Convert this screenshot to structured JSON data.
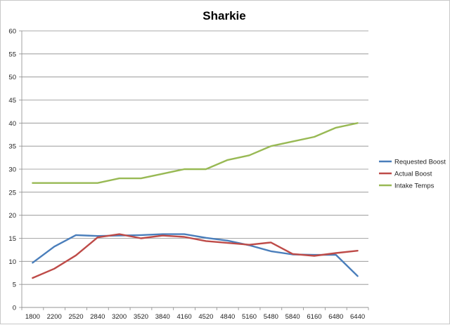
{
  "chart_data": {
    "type": "line",
    "title": "Sharkie",
    "xlabel": "",
    "ylabel": "",
    "categories": [
      "1800",
      "2200",
      "2520",
      "2840",
      "3200",
      "3520",
      "3840",
      "4160",
      "4520",
      "4840",
      "5160",
      "5480",
      "5840",
      "6160",
      "6480",
      "6440"
    ],
    "ylim": [
      0,
      60
    ],
    "yticks": [
      0,
      5,
      10,
      15,
      20,
      25,
      30,
      35,
      40,
      45,
      50,
      55,
      60
    ],
    "grid": true,
    "legend_position": "right",
    "series": [
      {
        "name": "Requested Boost",
        "color": "#4a7ebb",
        "values": [
          9.7,
          13.2,
          15.7,
          15.5,
          15.6,
          15.7,
          15.9,
          15.9,
          15.1,
          14.5,
          13.5,
          12.2,
          11.5,
          11.4,
          11.4,
          6.8
        ]
      },
      {
        "name": "Actual Boost",
        "color": "#be4b48",
        "values": [
          6.4,
          8.4,
          11.3,
          15.2,
          15.9,
          15.0,
          15.6,
          15.3,
          14.4,
          14.0,
          13.6,
          14.1,
          11.6,
          11.2,
          11.8,
          12.3
        ]
      },
      {
        "name": "Intake Temps",
        "color": "#98b954",
        "values": [
          27,
          27,
          27,
          27,
          28,
          28,
          29,
          30,
          30,
          32,
          33,
          35,
          36,
          37,
          39,
          40
        ]
      }
    ]
  }
}
